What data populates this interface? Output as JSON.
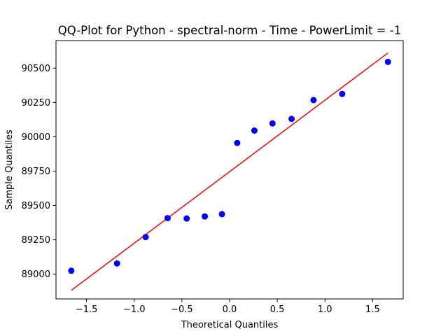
{
  "chart_data": {
    "type": "scatter",
    "title": "QQ-Plot for Python - spectral-norm - Time - PowerLimit = -1",
    "xlabel": "Theoretical Quantiles",
    "ylabel": "Sample Quantiles",
    "xlim": [
      -1.82,
      1.82
    ],
    "ylim": [
      88820,
      90700
    ],
    "xticks": [
      -1.5,
      -1.0,
      -0.5,
      0.0,
      0.5,
      1.0,
      1.5
    ],
    "xtick_labels": [
      "−1.5",
      "−1.0",
      "−0.5",
      "0.0",
      "0.5",
      "1.0",
      "1.5"
    ],
    "yticks": [
      89000,
      89250,
      89500,
      89750,
      90000,
      90250,
      90500
    ],
    "ytick_labels": [
      "89000",
      "89250",
      "89500",
      "89750",
      "90000",
      "90250",
      "90500"
    ],
    "grid": false,
    "series": [
      {
        "kind": "points",
        "color": "#0000ff",
        "x": [
          -1.66,
          -1.18,
          -0.88,
          -0.65,
          -0.45,
          -0.26,
          -0.08,
          0.08,
          0.26,
          0.45,
          0.65,
          0.88,
          1.18,
          1.66
        ],
        "y": [
          89025,
          89078,
          89270,
          89408,
          89405,
          89420,
          89437,
          89955,
          90045,
          90097,
          90130,
          90267,
          90312,
          90545
        ]
      },
      {
        "kind": "line",
        "color": "#ff0000",
        "x": [
          -1.66,
          1.66
        ],
        "y": [
          88882,
          90610
        ]
      }
    ]
  }
}
